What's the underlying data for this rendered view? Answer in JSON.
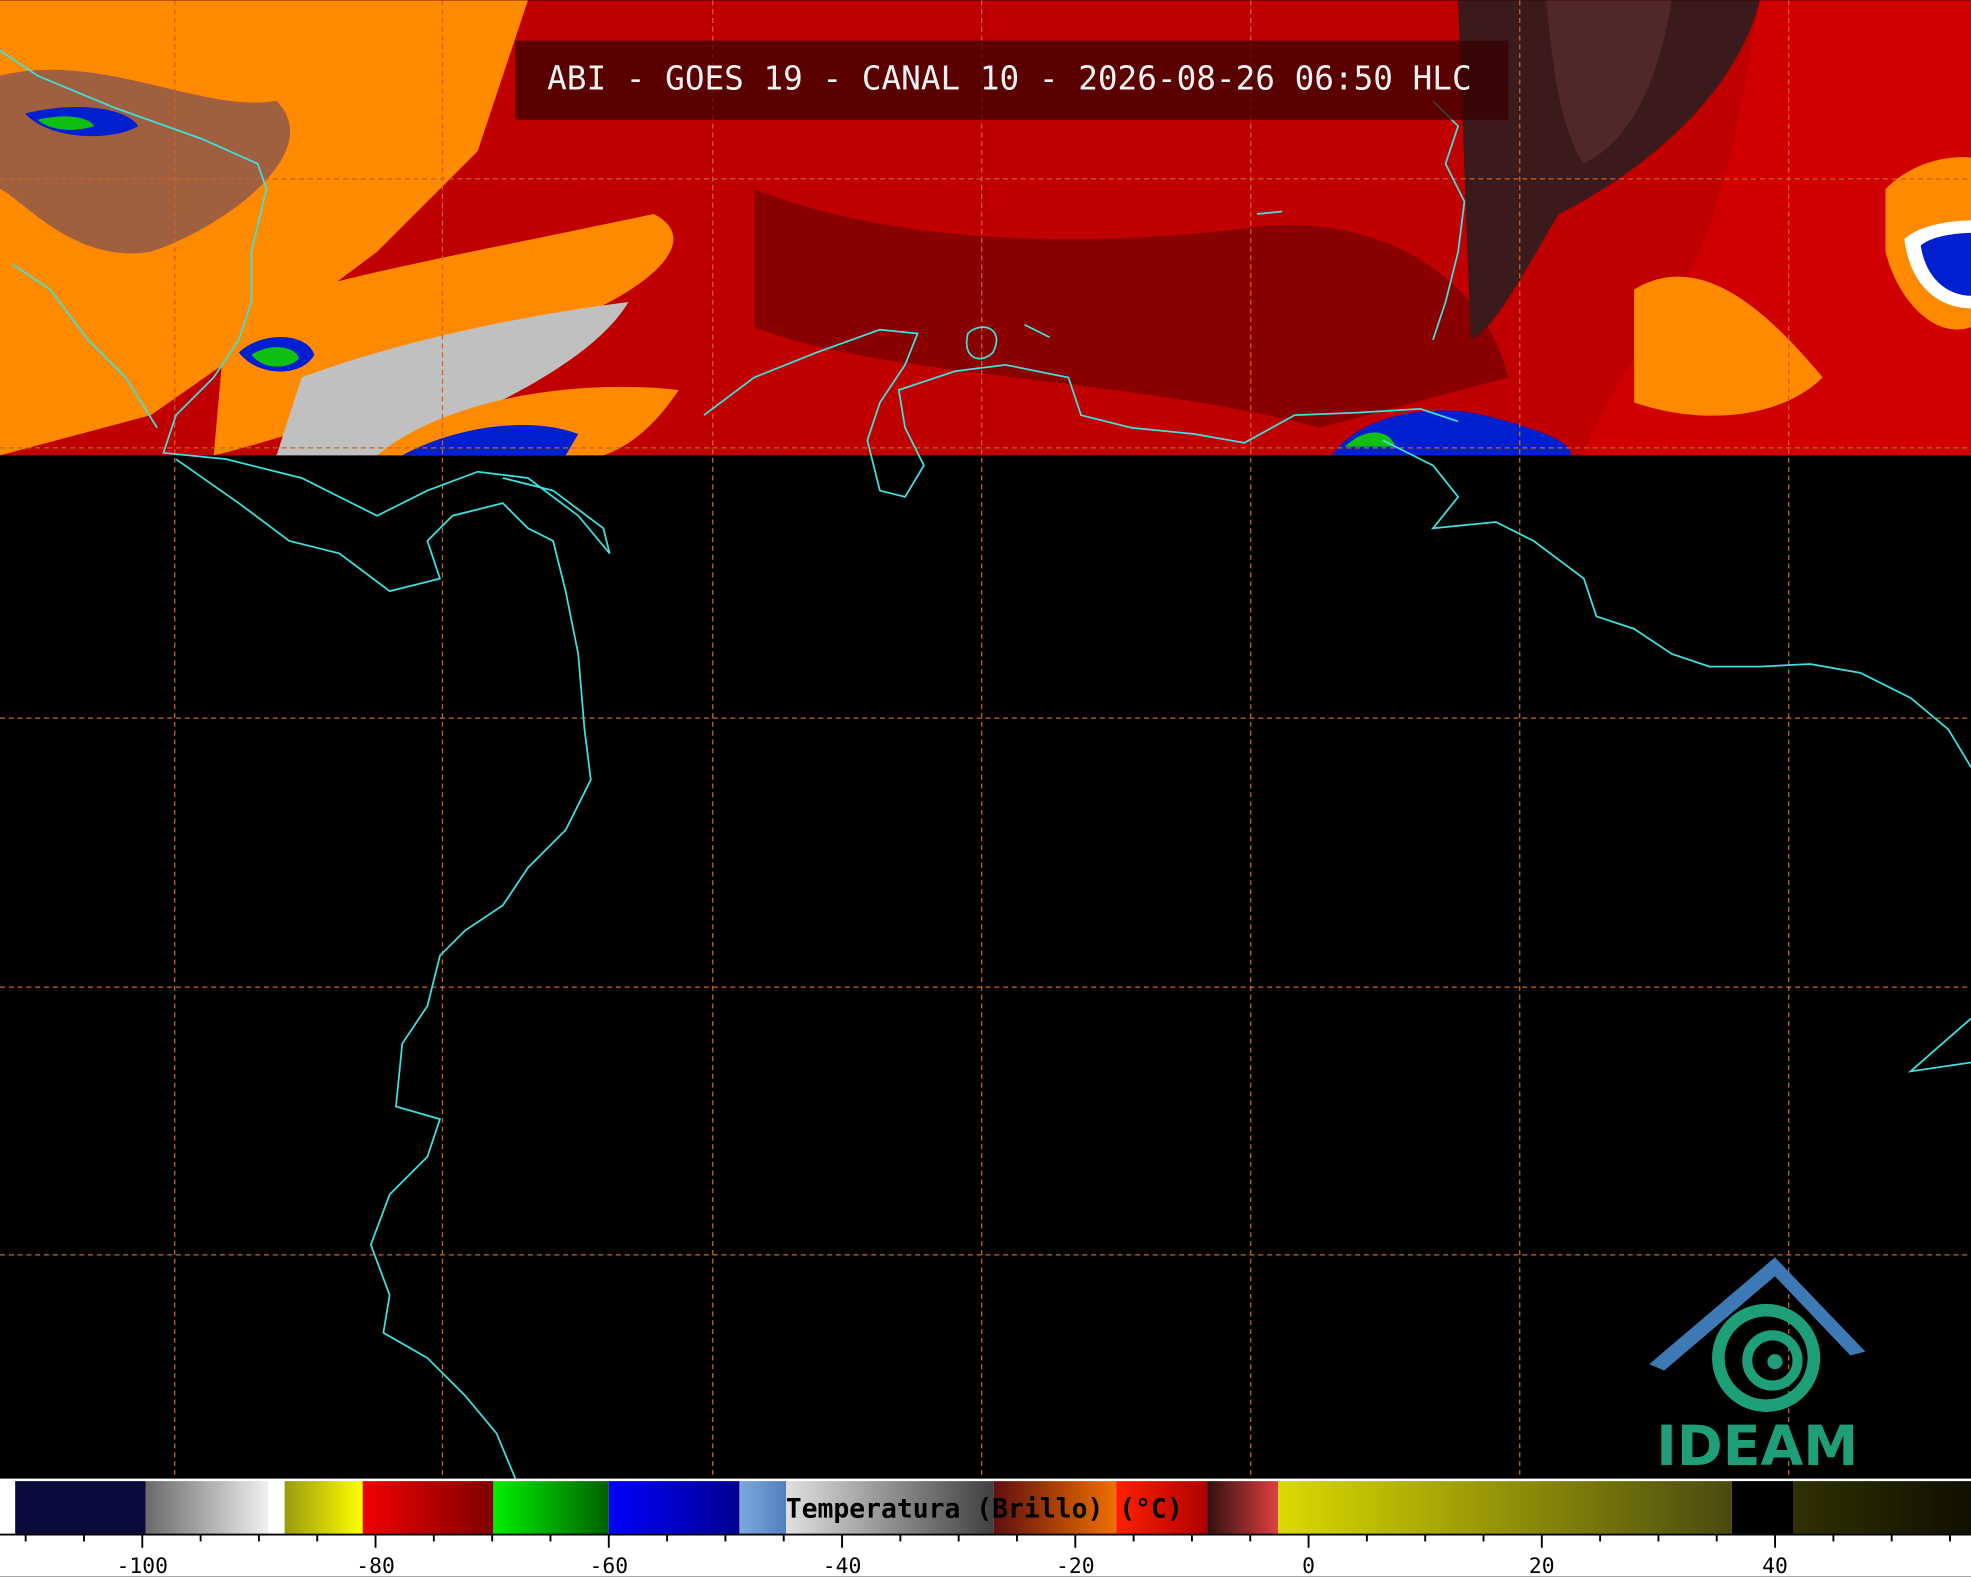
{
  "header": {
    "title": "ABI - GOES 19 - CANAL 10 - 2026-08-26 06:50 HLC"
  },
  "logo": {
    "text": "IDEAM"
  },
  "colorbar": {
    "label": "Temperatura (Brillo) (°C)",
    "xlim": [
      -112.2,
      56.8
    ],
    "ticks": [
      -100,
      -80,
      -60,
      -40,
      -20,
      0,
      20,
      40
    ],
    "minor_ticks": [
      -110,
      -105,
      -95,
      -90,
      -85,
      -75,
      -70,
      -65,
      -55,
      -50,
      -45,
      -35,
      -30,
      -25,
      -15,
      -10,
      -5,
      5,
      10,
      15,
      25,
      30,
      35,
      45,
      50,
      55
    ],
    "segments": [
      {
        "from": -112.2,
        "to": -110.9,
        "color": "#ffffff"
      },
      {
        "from": -110.9,
        "to": -99.7,
        "color": "#0a0a3c"
      },
      {
        "from": -99.7,
        "to": -89.2,
        "color": "#6a6a6a",
        "color_end": "#f0f0f0"
      },
      {
        "from": -89.2,
        "to": -87.8,
        "color": "#ffffff"
      },
      {
        "from": -87.8,
        "to": -81.1,
        "color": "#9a9a10",
        "color_end": "#ffff00"
      },
      {
        "from": -81.1,
        "to": -69.9,
        "color": "#f00000",
        "color_end": "#800000"
      },
      {
        "from": -69.9,
        "to": -60,
        "color": "#00f000",
        "color_end": "#006000"
      },
      {
        "from": -60,
        "to": -48.8,
        "color": "#0000ff",
        "color_end": "#000090"
      },
      {
        "from": -48.8,
        "to": -44.8,
        "color": "#7fa8e0",
        "color_end": "#5080c0"
      },
      {
        "from": -44.8,
        "to": -27.0,
        "color": "#e0e0e0",
        "color_end": "#404040"
      },
      {
        "from": -27.0,
        "to": -16.5,
        "color": "#601010",
        "color_end": "#f07000"
      },
      {
        "from": -16.5,
        "to": -8.7,
        "color": "#ff2000",
        "color_end": "#b00000"
      },
      {
        "from": -8.7,
        "to": -2.6,
        "color": "#301010",
        "color_end": "#e04040"
      },
      {
        "from": -2.6,
        "to": 36.3,
        "color": "#dada00",
        "color_end": "#4a4a10"
      },
      {
        "from": 36.3,
        "to": 41.6,
        "color": "#000000"
      },
      {
        "from": 41.6,
        "to": 56.8,
        "color": "#303000",
        "color_end": "#101000"
      }
    ]
  }
}
